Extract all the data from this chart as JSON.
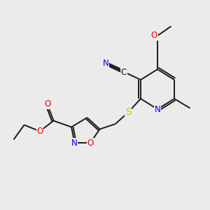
{
  "bg_color": "#ebebeb",
  "bond_color": "#1a1a1a",
  "atom_colors": {
    "N": "#0000ee",
    "O": "#ee0000",
    "S": "#cccc00",
    "C": "#1a1a1a"
  },
  "font_size": 8.5,
  "lw": 1.4
}
